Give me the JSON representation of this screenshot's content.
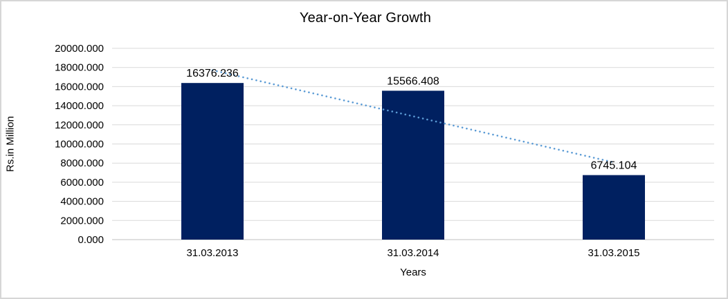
{
  "chart_data": {
    "type": "bar",
    "title": "Year-on-Year Growth",
    "xlabel": "Years",
    "ylabel": "Rs.in Million",
    "categories": [
      "31.03.2013",
      "31.03.2014",
      "31.03.2015"
    ],
    "series": [
      {
        "name": "Rs.in Million",
        "values": [
          16376.236,
          15566.408,
          6745.104
        ],
        "data_labels": [
          "16376.236",
          "15566.408",
          "6745.104"
        ]
      }
    ],
    "ylim": [
      0,
      20000
    ],
    "ytick_step": 2000,
    "ytick_decimals": 3,
    "ytick_labels": [
      "0.000",
      "2000.000",
      "4000.000",
      "6000.000",
      "8000.000",
      "10000.000",
      "12000.000",
      "14000.000",
      "16000.000",
      "18000.000",
      "20000.000"
    ],
    "grid": true,
    "legend_position": "none",
    "trendline": {
      "type": "linear",
      "style": "dotted",
      "color": "#5b9bd5"
    },
    "colors": {
      "bar": "#002060",
      "gridline": "#d9d9d9",
      "axis_line": "#bfbfbf",
      "text": "#000000",
      "background": "#ffffff"
    }
  }
}
